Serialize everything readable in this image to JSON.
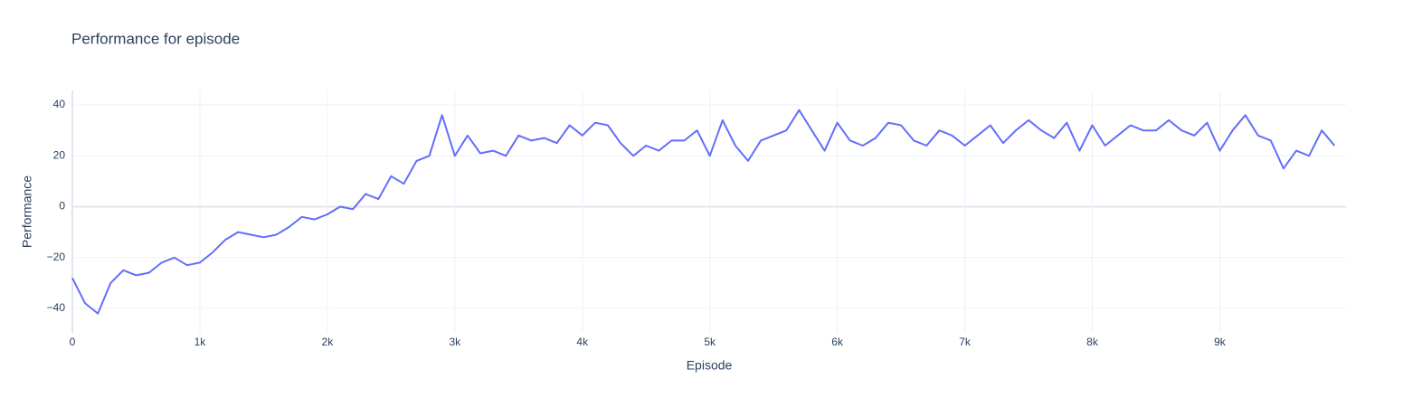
{
  "chart_data": {
    "type": "line",
    "title": "Performance for episode",
    "x_label": "Episode",
    "y_label": "Performance",
    "x": [
      0,
      100,
      200,
      300,
      400,
      500,
      600,
      700,
      800,
      900,
      1000,
      1100,
      1200,
      1300,
      1400,
      1500,
      1600,
      1700,
      1800,
      1900,
      2000,
      2100,
      2200,
      2300,
      2400,
      2500,
      2600,
      2700,
      2800,
      2900,
      3000,
      3100,
      3200,
      3300,
      3400,
      3500,
      3600,
      3700,
      3800,
      3900,
      4000,
      4100,
      4200,
      4300,
      4400,
      4500,
      4600,
      4700,
      4800,
      4900,
      5000,
      5100,
      5200,
      5300,
      5400,
      5500,
      5600,
      5700,
      5800,
      5900,
      6000,
      6100,
      6200,
      6300,
      6400,
      6500,
      6600,
      6700,
      6800,
      6900,
      7000,
      7100,
      7200,
      7300,
      7400,
      7500,
      7600,
      7700,
      7800,
      7900,
      8000,
      8100,
      8200,
      8300,
      8400,
      8500,
      8600,
      8700,
      8800,
      8900,
      9000,
      9100,
      9200,
      9300,
      9400,
      9500,
      9600,
      9700,
      9800,
      9900
    ],
    "series": [
      {
        "name": "Performance",
        "color": "#636efa",
        "values": [
          -28,
          -38,
          -42,
          -30,
          -25,
          -27,
          -26,
          -22,
          -20,
          -23,
          -22,
          -18,
          -13,
          -10,
          -11,
          -12,
          -11,
          -8,
          -4,
          -5,
          -3,
          0,
          -1,
          5,
          3,
          12,
          9,
          18,
          20,
          36,
          20,
          28,
          21,
          22,
          20,
          28,
          26,
          27,
          25,
          32,
          28,
          33,
          32,
          25,
          20,
          24,
          22,
          26,
          26,
          30,
          20,
          34,
          24,
          18,
          26,
          28,
          30,
          38,
          30,
          22,
          33,
          26,
          24,
          27,
          33,
          32,
          26,
          24,
          30,
          28,
          24,
          28,
          32,
          25,
          30,
          34,
          30,
          27,
          33,
          22,
          32,
          24,
          28,
          32,
          30,
          30,
          34,
          30,
          28,
          33,
          22,
          30,
          36,
          28,
          26,
          15,
          22,
          20,
          30,
          24
        ]
      }
    ],
    "xlim": [
      0,
      9990
    ],
    "ylim": [
      -49.6,
      45.7
    ],
    "xticks": [
      0,
      {
        "value": 1000,
        "label": "1k"
      },
      {
        "value": 2000,
        "label": "2k"
      },
      {
        "value": 3000,
        "label": "3k"
      },
      {
        "value": 4000,
        "label": "4k"
      },
      {
        "value": 5000,
        "label": "5k"
      },
      {
        "value": 6000,
        "label": "6k"
      },
      {
        "value": 7000,
        "label": "7k"
      },
      {
        "value": 8000,
        "label": "8k"
      },
      {
        "value": 9000,
        "label": "9k"
      }
    ],
    "yticks": [
      {
        "value": -40,
        "label": "−40"
      },
      {
        "value": -20,
        "label": "−20"
      },
      0,
      20,
      40
    ],
    "grid": true
  }
}
